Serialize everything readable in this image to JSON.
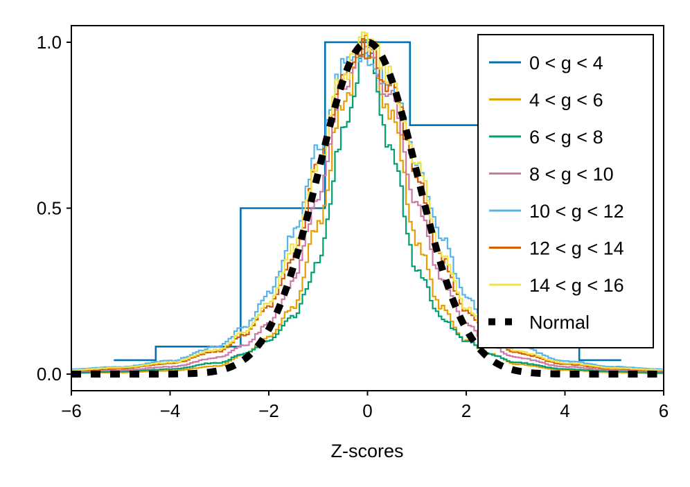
{
  "chart_data": {
    "type": "line",
    "title": "",
    "xlabel": "Z-scores",
    "ylabel": "",
    "xlim": [
      -6,
      6
    ],
    "ylim": [
      -0.05,
      1.05
    ],
    "xticks": [
      -6,
      -4,
      -2,
      0,
      2,
      4,
      6
    ],
    "yticks": [
      0.0,
      0.5,
      1.0
    ],
    "xtick_labels": [
      "−6",
      "−4",
      "−2",
      "0",
      "2",
      "4",
      "6"
    ],
    "ytick_labels": [
      "0.0",
      "0.5",
      "1.0"
    ],
    "grid": false,
    "legend_position": "top-right",
    "series": [
      {
        "name": "0 < g < 4",
        "color": "#0072B2",
        "style": "step",
        "edges": [
          -5.14,
          -4.29,
          -2.57,
          -0.86,
          0.86,
          2.57,
          4.29,
          5.14
        ],
        "values": [
          0.042,
          0.083,
          0.5,
          1.0,
          0.75,
          0.083,
          0.042
        ]
      },
      {
        "name": "4 < g < 6",
        "color": "#E69F00",
        "style": "step",
        "x": [
          -6,
          -5,
          -4,
          -3,
          -2.5,
          -2,
          -1.5,
          -1,
          -0.5,
          0,
          0.5,
          1,
          1.5,
          2,
          2.5,
          3,
          4,
          5,
          6
        ],
        "values": [
          0.003,
          0.005,
          0.01,
          0.025,
          0.06,
          0.11,
          0.2,
          0.45,
          0.82,
          0.99,
          0.78,
          0.4,
          0.2,
          0.1,
          0.06,
          0.03,
          0.012,
          0.005,
          0.002
        ]
      },
      {
        "name": "6 < g < 8",
        "color": "#009E73",
        "style": "step",
        "x": [
          -6,
          -5,
          -4,
          -3,
          -2.5,
          -2,
          -1.5,
          -1,
          -0.5,
          0,
          0.5,
          1,
          1.5,
          2,
          2.5,
          3,
          4,
          5,
          6
        ],
        "values": [
          0.004,
          0.008,
          0.015,
          0.035,
          0.06,
          0.1,
          0.17,
          0.33,
          0.72,
          0.98,
          0.66,
          0.32,
          0.17,
          0.1,
          0.06,
          0.035,
          0.015,
          0.008,
          0.004
        ]
      },
      {
        "name": "8 < g < 10",
        "color": "#CC79A7",
        "style": "step",
        "x": [
          -6,
          -5,
          -4,
          -3,
          -2.5,
          -2,
          -1.5,
          -1,
          -0.5,
          0,
          0.5,
          1,
          1.5,
          2,
          2.5,
          3,
          4,
          5,
          6
        ],
        "values": [
          0.008,
          0.012,
          0.022,
          0.05,
          0.085,
          0.15,
          0.28,
          0.53,
          0.87,
          0.98,
          0.83,
          0.52,
          0.29,
          0.15,
          0.085,
          0.05,
          0.022,
          0.012,
          0.008
        ]
      },
      {
        "name": "10 < g < 12",
        "color": "#56B4E9",
        "style": "step",
        "x": [
          -6,
          -5,
          -4,
          -3,
          -2.5,
          -2,
          -1.5,
          -1,
          -0.5,
          0,
          0.5,
          1,
          1.5,
          2,
          2.5,
          3,
          4,
          5,
          6
        ],
        "values": [
          0.015,
          0.022,
          0.04,
          0.085,
          0.14,
          0.24,
          0.42,
          0.68,
          0.92,
          0.97,
          0.88,
          0.64,
          0.41,
          0.23,
          0.14,
          0.085,
          0.04,
          0.022,
          0.015
        ]
      },
      {
        "name": "12 < g < 14",
        "color": "#D55E00",
        "style": "step",
        "x": [
          -6,
          -5,
          -4,
          -3,
          -2.5,
          -2,
          -1.5,
          -1,
          -0.5,
          0,
          0.5,
          1,
          1.5,
          2,
          2.5,
          3,
          4,
          5,
          6
        ],
        "values": [
          0.01,
          0.017,
          0.032,
          0.07,
          0.12,
          0.2,
          0.36,
          0.62,
          0.9,
          0.99,
          0.87,
          0.6,
          0.35,
          0.19,
          0.11,
          0.065,
          0.03,
          0.016,
          0.01
        ]
      },
      {
        "name": "14 < g < 16",
        "color": "#F0E442",
        "style": "step",
        "x": [
          -6,
          -5,
          -4,
          -3,
          -2.5,
          -2,
          -1.5,
          -1,
          -0.5,
          0,
          0.5,
          1,
          1.5,
          2,
          2.5,
          3,
          4,
          5,
          6
        ],
        "values": [
          0.012,
          0.02,
          0.035,
          0.075,
          0.125,
          0.21,
          0.38,
          0.64,
          0.91,
          1.0,
          0.89,
          0.63,
          0.37,
          0.2,
          0.12,
          0.07,
          0.034,
          0.018,
          0.012
        ]
      },
      {
        "name": "Normal",
        "color": "#000000",
        "style": "dashed",
        "distribution": "normal",
        "mean": 0,
        "sd": 1,
        "peak": 1.0
      }
    ]
  }
}
